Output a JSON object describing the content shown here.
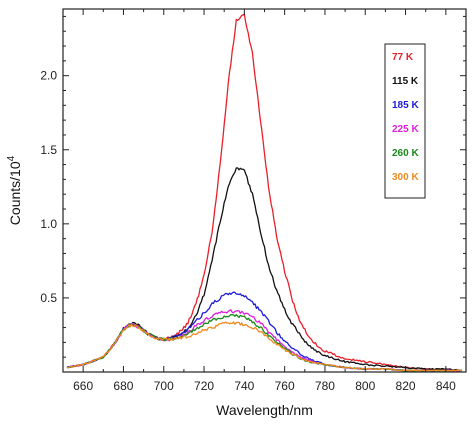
{
  "chart_data": {
    "type": "line",
    "title": "",
    "xlabel": "Wavelength/nm",
    "ylabel_main": "Counts/10",
    "ylabel_sup": "4",
    "xlim": [
      650,
      850
    ],
    "ylim": [
      0,
      2.45
    ],
    "x_ticks": [
      660,
      680,
      700,
      720,
      740,
      760,
      780,
      800,
      820,
      840
    ],
    "y_ticks": [
      0.5,
      1.0,
      1.5,
      2.0
    ],
    "y_tick_labels": [
      "0.5",
      "1.0",
      "1.5",
      "2.0"
    ],
    "grid": false,
    "legend_position": "top-right",
    "series": [
      {
        "name": "77 K",
        "color": "#e8202a",
        "x": [
          652,
          660,
          670,
          676,
          680,
          684,
          688,
          692,
          696,
          700,
          704,
          708,
          712,
          716,
          720,
          724,
          728,
          732,
          736,
          740,
          744,
          748,
          752,
          756,
          760,
          764,
          768,
          772,
          776,
          780,
          790,
          800,
          810,
          820,
          830,
          840,
          848
        ],
        "y": [
          0.03,
          0.05,
          0.1,
          0.2,
          0.29,
          0.33,
          0.31,
          0.26,
          0.23,
          0.22,
          0.24,
          0.27,
          0.33,
          0.46,
          0.65,
          0.95,
          1.4,
          1.95,
          2.37,
          2.41,
          2.15,
          1.7,
          1.25,
          0.92,
          0.68,
          0.48,
          0.33,
          0.24,
          0.18,
          0.14,
          0.09,
          0.07,
          0.05,
          0.03,
          0.02,
          0.02,
          0.01
        ]
      },
      {
        "name": "115 K",
        "color": "#111111",
        "x": [
          652,
          660,
          670,
          676,
          680,
          684,
          688,
          692,
          696,
          700,
          704,
          708,
          712,
          716,
          720,
          724,
          728,
          732,
          736,
          740,
          744,
          748,
          752,
          756,
          760,
          764,
          768,
          772,
          776,
          780,
          790,
          800,
          810,
          820,
          830,
          840,
          848
        ],
        "y": [
          0.03,
          0.05,
          0.1,
          0.2,
          0.29,
          0.33,
          0.31,
          0.26,
          0.23,
          0.22,
          0.23,
          0.25,
          0.29,
          0.38,
          0.52,
          0.75,
          1.02,
          1.25,
          1.37,
          1.36,
          1.2,
          0.95,
          0.72,
          0.55,
          0.42,
          0.32,
          0.24,
          0.18,
          0.14,
          0.11,
          0.07,
          0.05,
          0.04,
          0.03,
          0.02,
          0.02,
          0.01
        ]
      },
      {
        "name": "185 K",
        "color": "#1c1cd8",
        "x": [
          652,
          660,
          670,
          676,
          680,
          684,
          688,
          692,
          696,
          700,
          704,
          708,
          712,
          716,
          720,
          724,
          728,
          732,
          736,
          740,
          744,
          748,
          752,
          756,
          760,
          764,
          768,
          772,
          776,
          780,
          790,
          800,
          810,
          820,
          830,
          840,
          848
        ],
        "y": [
          0.03,
          0.05,
          0.1,
          0.2,
          0.29,
          0.32,
          0.3,
          0.26,
          0.23,
          0.22,
          0.23,
          0.25,
          0.29,
          0.34,
          0.4,
          0.46,
          0.5,
          0.53,
          0.53,
          0.51,
          0.47,
          0.41,
          0.34,
          0.27,
          0.21,
          0.16,
          0.12,
          0.09,
          0.07,
          0.05,
          0.03,
          0.02,
          0.02,
          0.01,
          0.01,
          0.01,
          0.01
        ]
      },
      {
        "name": "225 K",
        "color": "#e020e0",
        "x": [
          652,
          660,
          670,
          676,
          680,
          684,
          688,
          692,
          696,
          700,
          704,
          708,
          712,
          716,
          720,
          724,
          728,
          732,
          736,
          740,
          744,
          748,
          752,
          756,
          760,
          764,
          768,
          772,
          776,
          780,
          790,
          800,
          810,
          820,
          830,
          840,
          848
        ],
        "y": [
          0.03,
          0.05,
          0.1,
          0.2,
          0.29,
          0.32,
          0.3,
          0.26,
          0.23,
          0.22,
          0.22,
          0.24,
          0.27,
          0.31,
          0.35,
          0.38,
          0.4,
          0.41,
          0.41,
          0.4,
          0.37,
          0.33,
          0.27,
          0.22,
          0.17,
          0.13,
          0.1,
          0.08,
          0.06,
          0.05,
          0.03,
          0.02,
          0.02,
          0.01,
          0.01,
          0.01,
          0.01
        ]
      },
      {
        "name": "260 K",
        "color": "#1a8a1a",
        "x": [
          652,
          660,
          670,
          676,
          680,
          684,
          688,
          692,
          696,
          700,
          704,
          708,
          712,
          716,
          720,
          724,
          728,
          732,
          736,
          740,
          744,
          748,
          752,
          756,
          760,
          764,
          768,
          772,
          776,
          780,
          790,
          800,
          810,
          820,
          830,
          840,
          848
        ],
        "y": [
          0.03,
          0.05,
          0.1,
          0.2,
          0.29,
          0.32,
          0.3,
          0.26,
          0.23,
          0.22,
          0.22,
          0.23,
          0.26,
          0.29,
          0.32,
          0.35,
          0.37,
          0.38,
          0.38,
          0.37,
          0.34,
          0.3,
          0.25,
          0.2,
          0.16,
          0.12,
          0.09,
          0.07,
          0.06,
          0.05,
          0.03,
          0.02,
          0.02,
          0.01,
          0.01,
          0.01,
          0.01
        ]
      },
      {
        "name": "300 K",
        "color": "#ee8a20",
        "x": [
          652,
          660,
          670,
          676,
          680,
          684,
          688,
          692,
          696,
          700,
          704,
          708,
          712,
          716,
          720,
          724,
          728,
          732,
          736,
          740,
          744,
          748,
          752,
          756,
          760,
          764,
          768,
          772,
          776,
          780,
          790,
          800,
          810,
          820,
          830,
          840,
          848
        ],
        "y": [
          0.03,
          0.05,
          0.1,
          0.2,
          0.29,
          0.32,
          0.3,
          0.26,
          0.23,
          0.22,
          0.22,
          0.23,
          0.24,
          0.26,
          0.28,
          0.3,
          0.32,
          0.33,
          0.33,
          0.32,
          0.3,
          0.27,
          0.23,
          0.19,
          0.15,
          0.12,
          0.09,
          0.07,
          0.06,
          0.05,
          0.03,
          0.02,
          0.02,
          0.01,
          0.01,
          0.01,
          0.01
        ]
      }
    ]
  }
}
